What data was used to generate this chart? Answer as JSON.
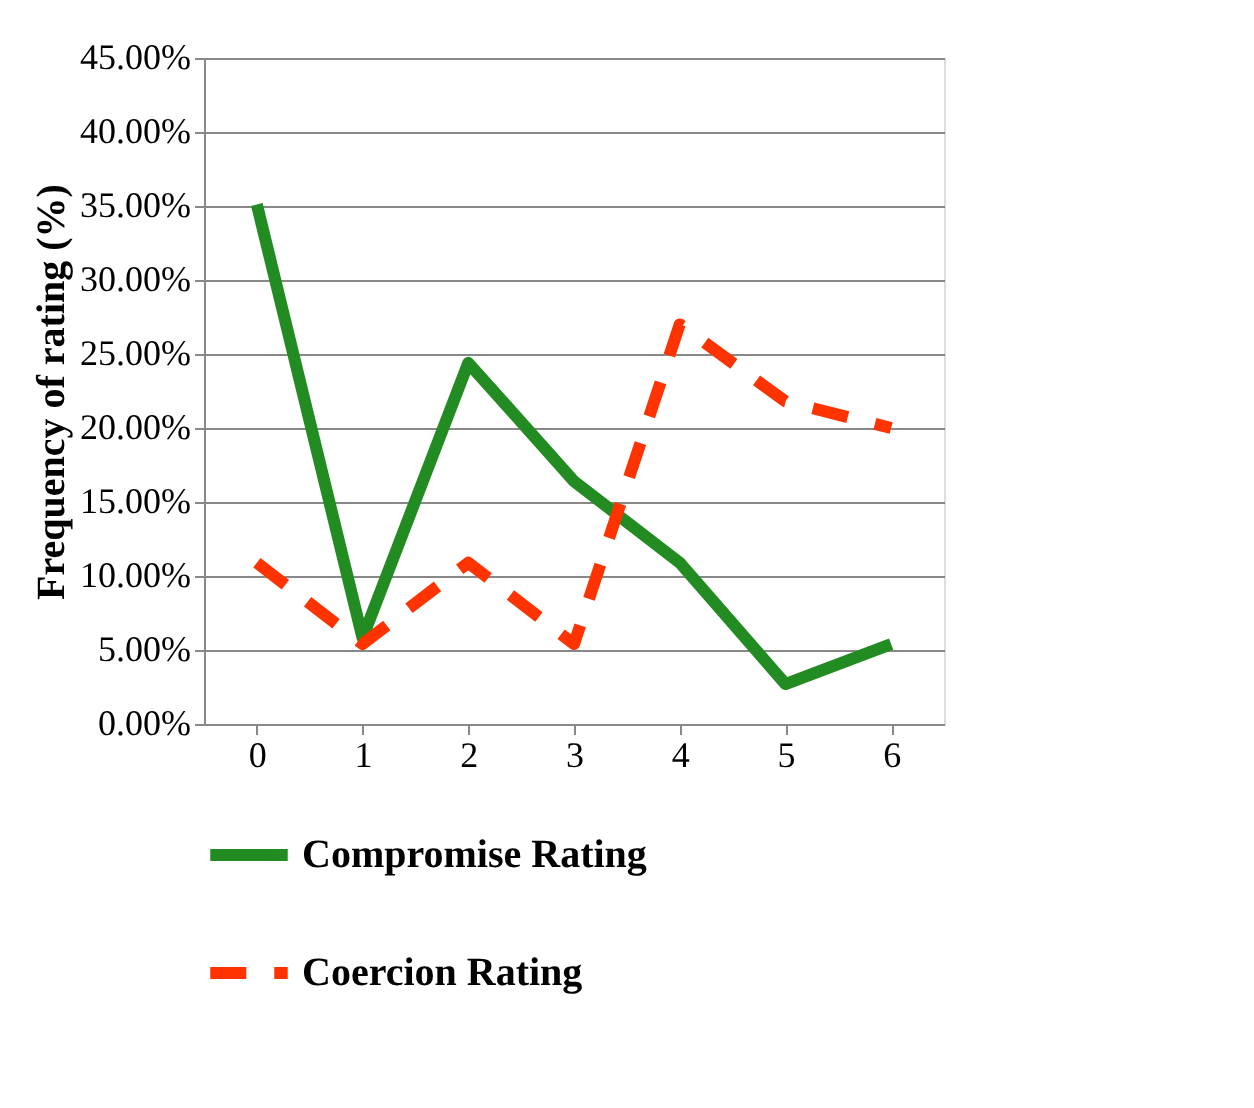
{
  "chart_data": {
    "type": "line",
    "ylabel": "Frequency of rating (%)",
    "categories": [
      "0",
      "1",
      "2",
      "3",
      "4",
      "5",
      "6"
    ],
    "series": [
      {
        "name": "Compromise Rating",
        "color": "#228b22",
        "line_style": "solid",
        "values": [
          35.1,
          5.8,
          24.4,
          16.4,
          10.9,
          2.7,
          5.4
        ]
      },
      {
        "name": "Coercion Rating",
        "color": "#ff3300",
        "line_style": "dashed",
        "values": [
          10.9,
          5.4,
          10.9,
          5.4,
          27.0,
          21.8,
          20.0
        ]
      }
    ],
    "ylim": [
      0,
      45
    ],
    "yticks": [
      {
        "value": 0,
        "label": "0.00%"
      },
      {
        "value": 5,
        "label": "5.00%"
      },
      {
        "value": 10,
        "label": "10.00%"
      },
      {
        "value": 15,
        "label": "15.00%"
      },
      {
        "value": 20,
        "label": "20.00%"
      },
      {
        "value": 25,
        "label": "25.00%"
      },
      {
        "value": 30,
        "label": "30.00%"
      },
      {
        "value": 35,
        "label": "35.00%"
      },
      {
        "value": 40,
        "label": "40.00%"
      },
      {
        "value": 45,
        "label": "45.00%"
      }
    ],
    "grid": "y",
    "legend": "bottom",
    "marker": "none"
  }
}
